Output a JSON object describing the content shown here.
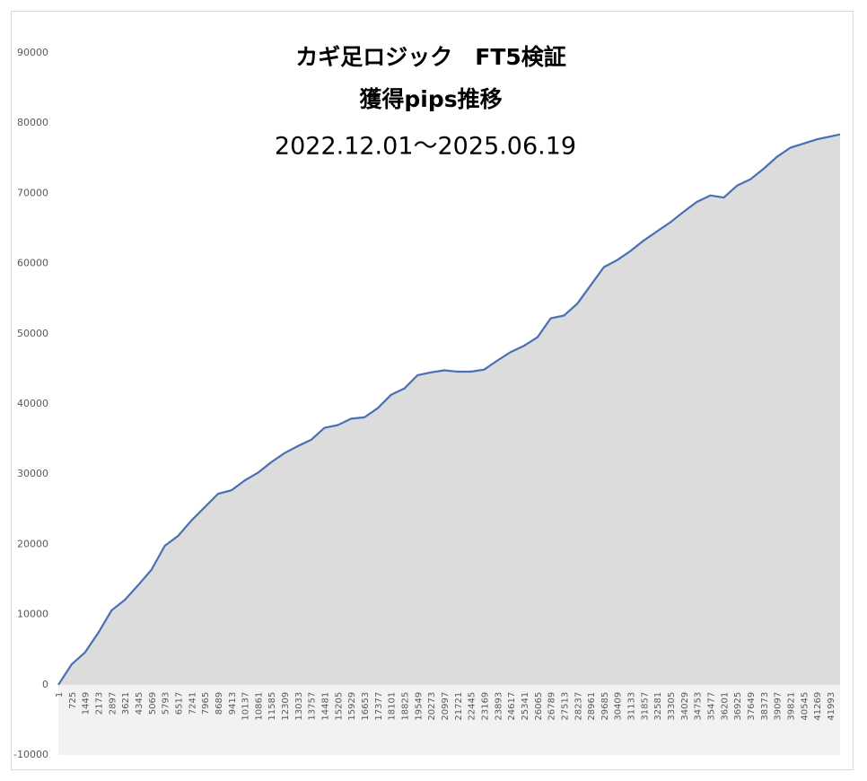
{
  "chart_data": {
    "type": "area",
    "title": "カギ足ロジック　FT5検証",
    "subtitle": "獲得pips推移",
    "period": "2022.12.01～2025.06.19",
    "x": [
      1,
      725,
      1449,
      2173,
      2897,
      3621,
      4345,
      5069,
      5793,
      6517,
      7241,
      7965,
      8689,
      9413,
      10137,
      10861,
      11585,
      12309,
      13033,
      13757,
      14481,
      15205,
      15929,
      16653,
      17377,
      18101,
      18825,
      19549,
      20273,
      20997,
      21721,
      22445,
      23169,
      23893,
      24617,
      25341,
      26065,
      26789,
      27513,
      28237,
      28961,
      29685,
      30409,
      31133,
      31857,
      32581,
      33305,
      34029,
      34753,
      35477,
      36201,
      36925,
      37649,
      38373,
      39097,
      39821,
      40545,
      41269,
      41993,
      42531
    ],
    "values": [
      0,
      2900,
      4600,
      7400,
      10600,
      12100,
      14200,
      16400,
      19800,
      21200,
      23400,
      25300,
      27200,
      27700,
      29100,
      30200,
      31700,
      33000,
      34000,
      34900,
      36600,
      37000,
      37900,
      38100,
      39400,
      41300,
      42200,
      44100,
      44500,
      44800,
      44600,
      44600,
      44900,
      46200,
      47400,
      48300,
      49500,
      52200,
      52600,
      54300,
      56900,
      59500,
      60500,
      61800,
      63300,
      64600,
      65900,
      67400,
      68800,
      69700,
      69400,
      71100,
      72000,
      73500,
      75200,
      76500,
      77100,
      77700,
      78100,
      78400
    ],
    "color": "#4a6fb5",
    "fill_color": "#dcdcdc",
    "xlim": [
      1,
      42531
    ],
    "xticks": [
      1,
      725,
      1449,
      2173,
      2897,
      3621,
      4345,
      5069,
      5793,
      6517,
      7241,
      7965,
      8689,
      9413,
      10137,
      10861,
      11585,
      12309,
      13033,
      13757,
      14481,
      15205,
      15929,
      16653,
      17377,
      18101,
      18825,
      19549,
      20273,
      20997,
      21721,
      22445,
      23169,
      23893,
      24617,
      25341,
      26065,
      26789,
      27513,
      28237,
      28961,
      29685,
      30409,
      31133,
      31857,
      32581,
      33305,
      34029,
      34753,
      35477,
      36201,
      36925,
      37649,
      38373,
      39097,
      39821,
      40545,
      41269,
      41993
    ],
    "ylim": [
      -10000,
      90000
    ],
    "yticks": [
      -10000,
      0,
      10000,
      20000,
      30000,
      40000,
      50000,
      60000,
      70000,
      80000,
      90000
    ]
  }
}
